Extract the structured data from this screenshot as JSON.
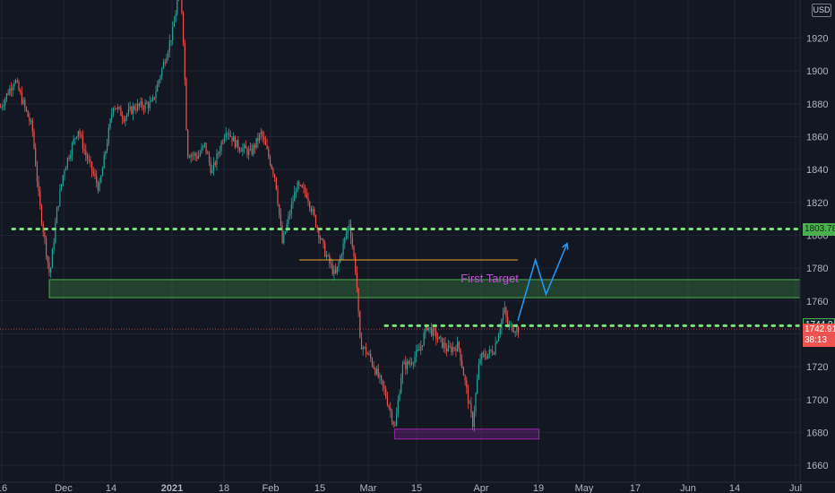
{
  "currency": "USD",
  "colors": {
    "background": "#131722",
    "grid": "#1f2433",
    "candle_up": "#26a69a",
    "candle_down": "#ef5350",
    "level_line": "#7ce07c",
    "support_zone": "#4caf50",
    "bottom_zone": "#9c27b0",
    "orange_line": "#f0a030",
    "projection": "#2196f3",
    "annotation": "#c050d0"
  },
  "chart_data": {
    "type": "candlestick",
    "title": "",
    "xlabel": "",
    "ylabel": "",
    "ylim": [
      1640,
      1960
    ],
    "y_ticks": [
      1660,
      1680,
      1700,
      1720,
      1740,
      1760,
      1780,
      1800,
      1820,
      1840,
      1860,
      1880,
      1900,
      1920
    ],
    "x_ticks": [
      "16",
      "Dec",
      "14",
      "2021",
      "18",
      "Feb",
      "15",
      "Mar",
      "15",
      "Apr",
      "19",
      "May",
      "17",
      "Jun",
      "14",
      "Jul"
    ],
    "x_ticks_bold": [
      "2021"
    ],
    "grid": true,
    "price_path": [
      [
        "2020-11-16",
        1878
      ],
      [
        "2020-11-20",
        1895
      ],
      [
        "2020-11-25",
        1865
      ],
      [
        "2020-11-27",
        1820
      ],
      [
        "2020-11-30",
        1775
      ],
      [
        "2020-12-02",
        1815
      ],
      [
        "2020-12-04",
        1840
      ],
      [
        "2020-12-08",
        1865
      ],
      [
        "2020-12-10",
        1850
      ],
      [
        "2020-12-14",
        1828
      ],
      [
        "2020-12-18",
        1880
      ],
      [
        "2020-12-21",
        1872
      ],
      [
        "2020-12-24",
        1878
      ],
      [
        "2020-12-29",
        1880
      ],
      [
        "2021-01-04",
        1925
      ],
      [
        "2021-01-06",
        1955
      ],
      [
        "2021-01-07",
        1915
      ],
      [
        "2021-01-08",
        1850
      ],
      [
        "2021-01-11",
        1848
      ],
      [
        "2021-01-13",
        1855
      ],
      [
        "2021-01-15",
        1838
      ],
      [
        "2021-01-19",
        1865
      ],
      [
        "2021-01-22",
        1855
      ],
      [
        "2021-01-26",
        1850
      ],
      [
        "2021-01-29",
        1862
      ],
      [
        "2021-02-02",
        1835
      ],
      [
        "2021-02-04",
        1795
      ],
      [
        "2021-02-08",
        1830
      ],
      [
        "2021-02-11",
        1825
      ],
      [
        "2021-02-16",
        1790
      ],
      [
        "2021-02-19",
        1775
      ],
      [
        "2021-02-23",
        1808
      ],
      [
        "2021-02-25",
        1775
      ],
      [
        "2021-02-26",
        1735
      ],
      [
        "2021-03-01",
        1725
      ],
      [
        "2021-03-05",
        1705
      ],
      [
        "2021-03-08",
        1683
      ],
      [
        "2021-03-10",
        1720
      ],
      [
        "2021-03-12",
        1722
      ],
      [
        "2021-03-15",
        1730
      ],
      [
        "2021-03-17",
        1745
      ],
      [
        "2021-03-19",
        1740
      ],
      [
        "2021-03-23",
        1730
      ],
      [
        "2021-03-26",
        1733
      ],
      [
        "2021-03-30",
        1685
      ],
      [
        "2021-04-01",
        1725
      ],
      [
        "2021-04-05",
        1730
      ],
      [
        "2021-04-08",
        1755
      ],
      [
        "2021-04-09",
        1745
      ],
      [
        "2021-04-12",
        1742.9
      ]
    ],
    "levels": {
      "dotted_resistance": 1803.781,
      "dotted_support": 1744.944,
      "current_price": 1742.915
    },
    "zones": [
      {
        "name": "green-zone",
        "from_date": "2020-11-30",
        "to_date": "end",
        "low": 1762,
        "high": 1773
      },
      {
        "name": "purple-zone",
        "from_date": "2021-03-08",
        "to_date": "2021-04-18",
        "low": 1676,
        "high": 1682
      }
    ],
    "orange_line": {
      "from_date": "2021-02-09",
      "to_date": "2021-04-12",
      "price": 1785
    },
    "projection_path": [
      [
        "2021-04-12",
        1748
      ],
      [
        "2021-04-17",
        1785
      ],
      [
        "2021-04-20",
        1764
      ],
      [
        "2021-04-26",
        1795
      ]
    ],
    "annotations": [
      {
        "text": "First Target",
        "date": "2021-04-11",
        "price": 1768
      }
    ],
    "countdown": "38:13"
  }
}
